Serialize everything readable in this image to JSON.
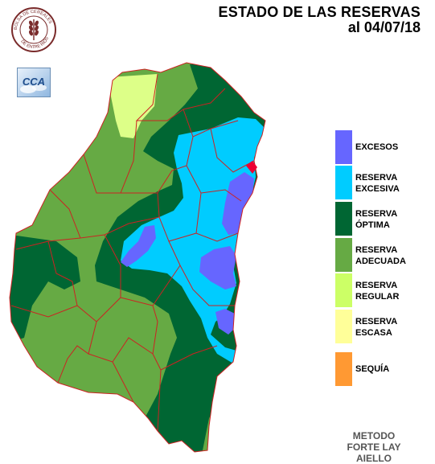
{
  "header": {
    "title_line1": "ESTADO DE LAS RESERVAS",
    "title_line2": "al 04/07/18"
  },
  "logos": {
    "seal_text": "BOLSA DE CEREALES DE ENTRE RIOS",
    "cca_text": "CCA"
  },
  "legend": {
    "items": [
      {
        "label_lines": [
          "EXCESOS"
        ],
        "color": "#6666ff"
      },
      {
        "label_lines": [
          "RESERVA",
          "EXCESIVA"
        ],
        "color": "#00ccff"
      },
      {
        "label_lines": [
          "RESERVA",
          "ÓPTIMA"
        ],
        "color": "#006633"
      },
      {
        "label_lines": [
          "RESERVA",
          "ADECUADA"
        ],
        "color": "#66aa44"
      },
      {
        "label_lines": [
          "RESERVA",
          "REGULAR"
        ],
        "color": "#ccff66"
      },
      {
        "label_lines": [
          "RESERVA",
          "ESCASA"
        ],
        "color": "#ffff99"
      },
      {
        "label_lines": [
          "SEQUÍA"
        ],
        "color": "#ff9933"
      }
    ]
  },
  "method": {
    "lines": [
      "METODO",
      "FORTE LAY",
      "AIELLO"
    ]
  },
  "map": {
    "region": "Entre Ríos",
    "border_color": "#cc2222"
  }
}
